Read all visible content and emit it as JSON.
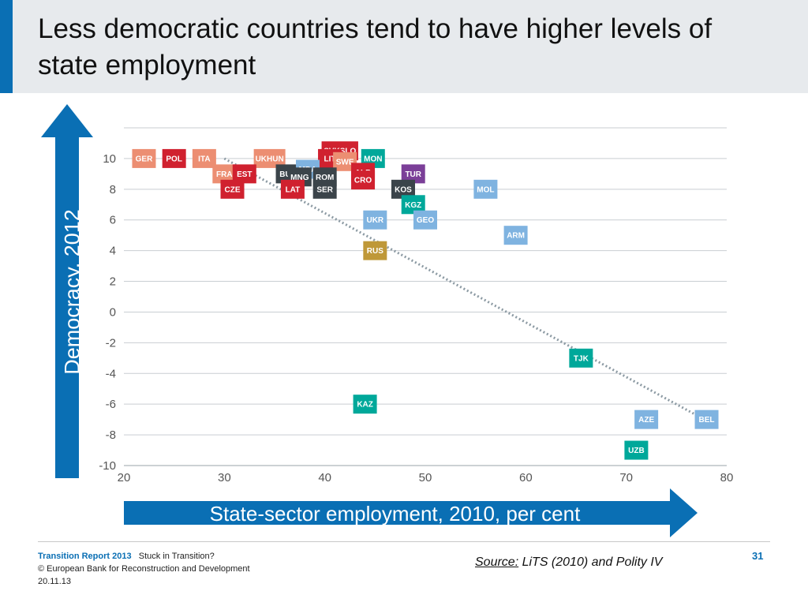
{
  "slide": {
    "title": "Less democratic countries tend to have higher levels of state employment",
    "y_arrow_label": "Democracy, 2012",
    "x_arrow_label": "State-sector employment, 2010, per cent",
    "source_prefix": "Source:",
    "source_text": " LiTS (2010) and Polity IV",
    "page_number": "31",
    "footer": {
      "report": "Transition Report 2013",
      "subtitle": "Stuck in Transition?",
      "copyright": "© European Bank for Reconstruction and Development",
      "date": "20.11.13"
    }
  },
  "chart_data": {
    "type": "scatter",
    "title": "Less democratic countries tend to have higher levels of state employment",
    "xlabel": "State-sector employment, 2010, per cent",
    "ylabel": "Democracy, 2012",
    "xlim": [
      20,
      80
    ],
    "ylim": [
      -10,
      12
    ],
    "x_ticks": [
      20,
      30,
      40,
      50,
      60,
      70,
      80
    ],
    "y_ticks": [
      10,
      8,
      6,
      4,
      2,
      0,
      -2,
      -4,
      -6,
      -8,
      -10
    ],
    "grid": "horizontal",
    "trendline": {
      "style": "dotted",
      "color": "#8c9aa3",
      "from": [
        30,
        10
      ],
      "to": [
        77.5,
        -6.9
      ]
    },
    "colors": {
      "red": "#d0212f",
      "salmon": "#ec8e72",
      "blue": "#7fb3e0",
      "dark": "#3b444a",
      "teal": "#00a89a",
      "purple": "#7b3f98",
      "gold": "#bf9838"
    },
    "points": [
      {
        "label": "GER",
        "x": 22,
        "y": 10,
        "color": "salmon"
      },
      {
        "label": "POL",
        "x": 25,
        "y": 10,
        "color": "red"
      },
      {
        "label": "ITA",
        "x": 28,
        "y": 10,
        "color": "salmon"
      },
      {
        "label": "UKHUN",
        "x": 34.5,
        "y": 10,
        "color": "salmon"
      },
      {
        "label": "SVKSLO",
        "x": 41.5,
        "y": 10.5,
        "color": "red"
      },
      {
        "label": "LIT",
        "x": 40.5,
        "y": 10,
        "color": "red"
      },
      {
        "label": "SWE",
        "x": 42,
        "y": 9.8,
        "color": "salmon"
      },
      {
        "label": "MON",
        "x": 44.8,
        "y": 10,
        "color": "teal"
      },
      {
        "label": "FRA",
        "x": 30,
        "y": 9,
        "color": "salmon"
      },
      {
        "label": "EST",
        "x": 32,
        "y": 9,
        "color": "red"
      },
      {
        "label": "BUL",
        "x": 36.3,
        "y": 9,
        "color": "dark"
      },
      {
        "label": "MDA",
        "x": 38.3,
        "y": 9.3,
        "color": "blue"
      },
      {
        "label": "MNG",
        "x": 37.5,
        "y": 8.8,
        "color": "dark"
      },
      {
        "label": "ROM",
        "x": 40,
        "y": 8.8,
        "color": "dark"
      },
      {
        "label": "ALB",
        "x": 43.8,
        "y": 9.1,
        "color": "red"
      },
      {
        "label": "CRO",
        "x": 43.8,
        "y": 8.6,
        "color": "red"
      },
      {
        "label": "TUR",
        "x": 48.8,
        "y": 9,
        "color": "purple"
      },
      {
        "label": "CZE",
        "x": 30.8,
        "y": 8,
        "color": "red"
      },
      {
        "label": "LAT",
        "x": 36.8,
        "y": 8,
        "color": "red"
      },
      {
        "label": "SER",
        "x": 40,
        "y": 8,
        "color": "dark"
      },
      {
        "label": "KOS",
        "x": 47.8,
        "y": 8,
        "color": "dark"
      },
      {
        "label": "MOL",
        "x": 56,
        "y": 8,
        "color": "blue"
      },
      {
        "label": "KGZ",
        "x": 48.8,
        "y": 7,
        "color": "teal"
      },
      {
        "label": "UKR",
        "x": 45,
        "y": 6,
        "color": "blue"
      },
      {
        "label": "GEO",
        "x": 50,
        "y": 6,
        "color": "blue"
      },
      {
        "label": "ARM",
        "x": 59,
        "y": 5,
        "color": "blue"
      },
      {
        "label": "RUS",
        "x": 45,
        "y": 4,
        "color": "gold"
      },
      {
        "label": "TJK",
        "x": 65.5,
        "y": -3,
        "color": "teal"
      },
      {
        "label": "KAZ",
        "x": 44,
        "y": -6,
        "color": "teal"
      },
      {
        "label": "AZE",
        "x": 72,
        "y": -7,
        "color": "blue"
      },
      {
        "label": "BEL",
        "x": 78,
        "y": -7,
        "color": "blue"
      },
      {
        "label": "UZB",
        "x": 71,
        "y": -9,
        "color": "teal"
      }
    ]
  }
}
